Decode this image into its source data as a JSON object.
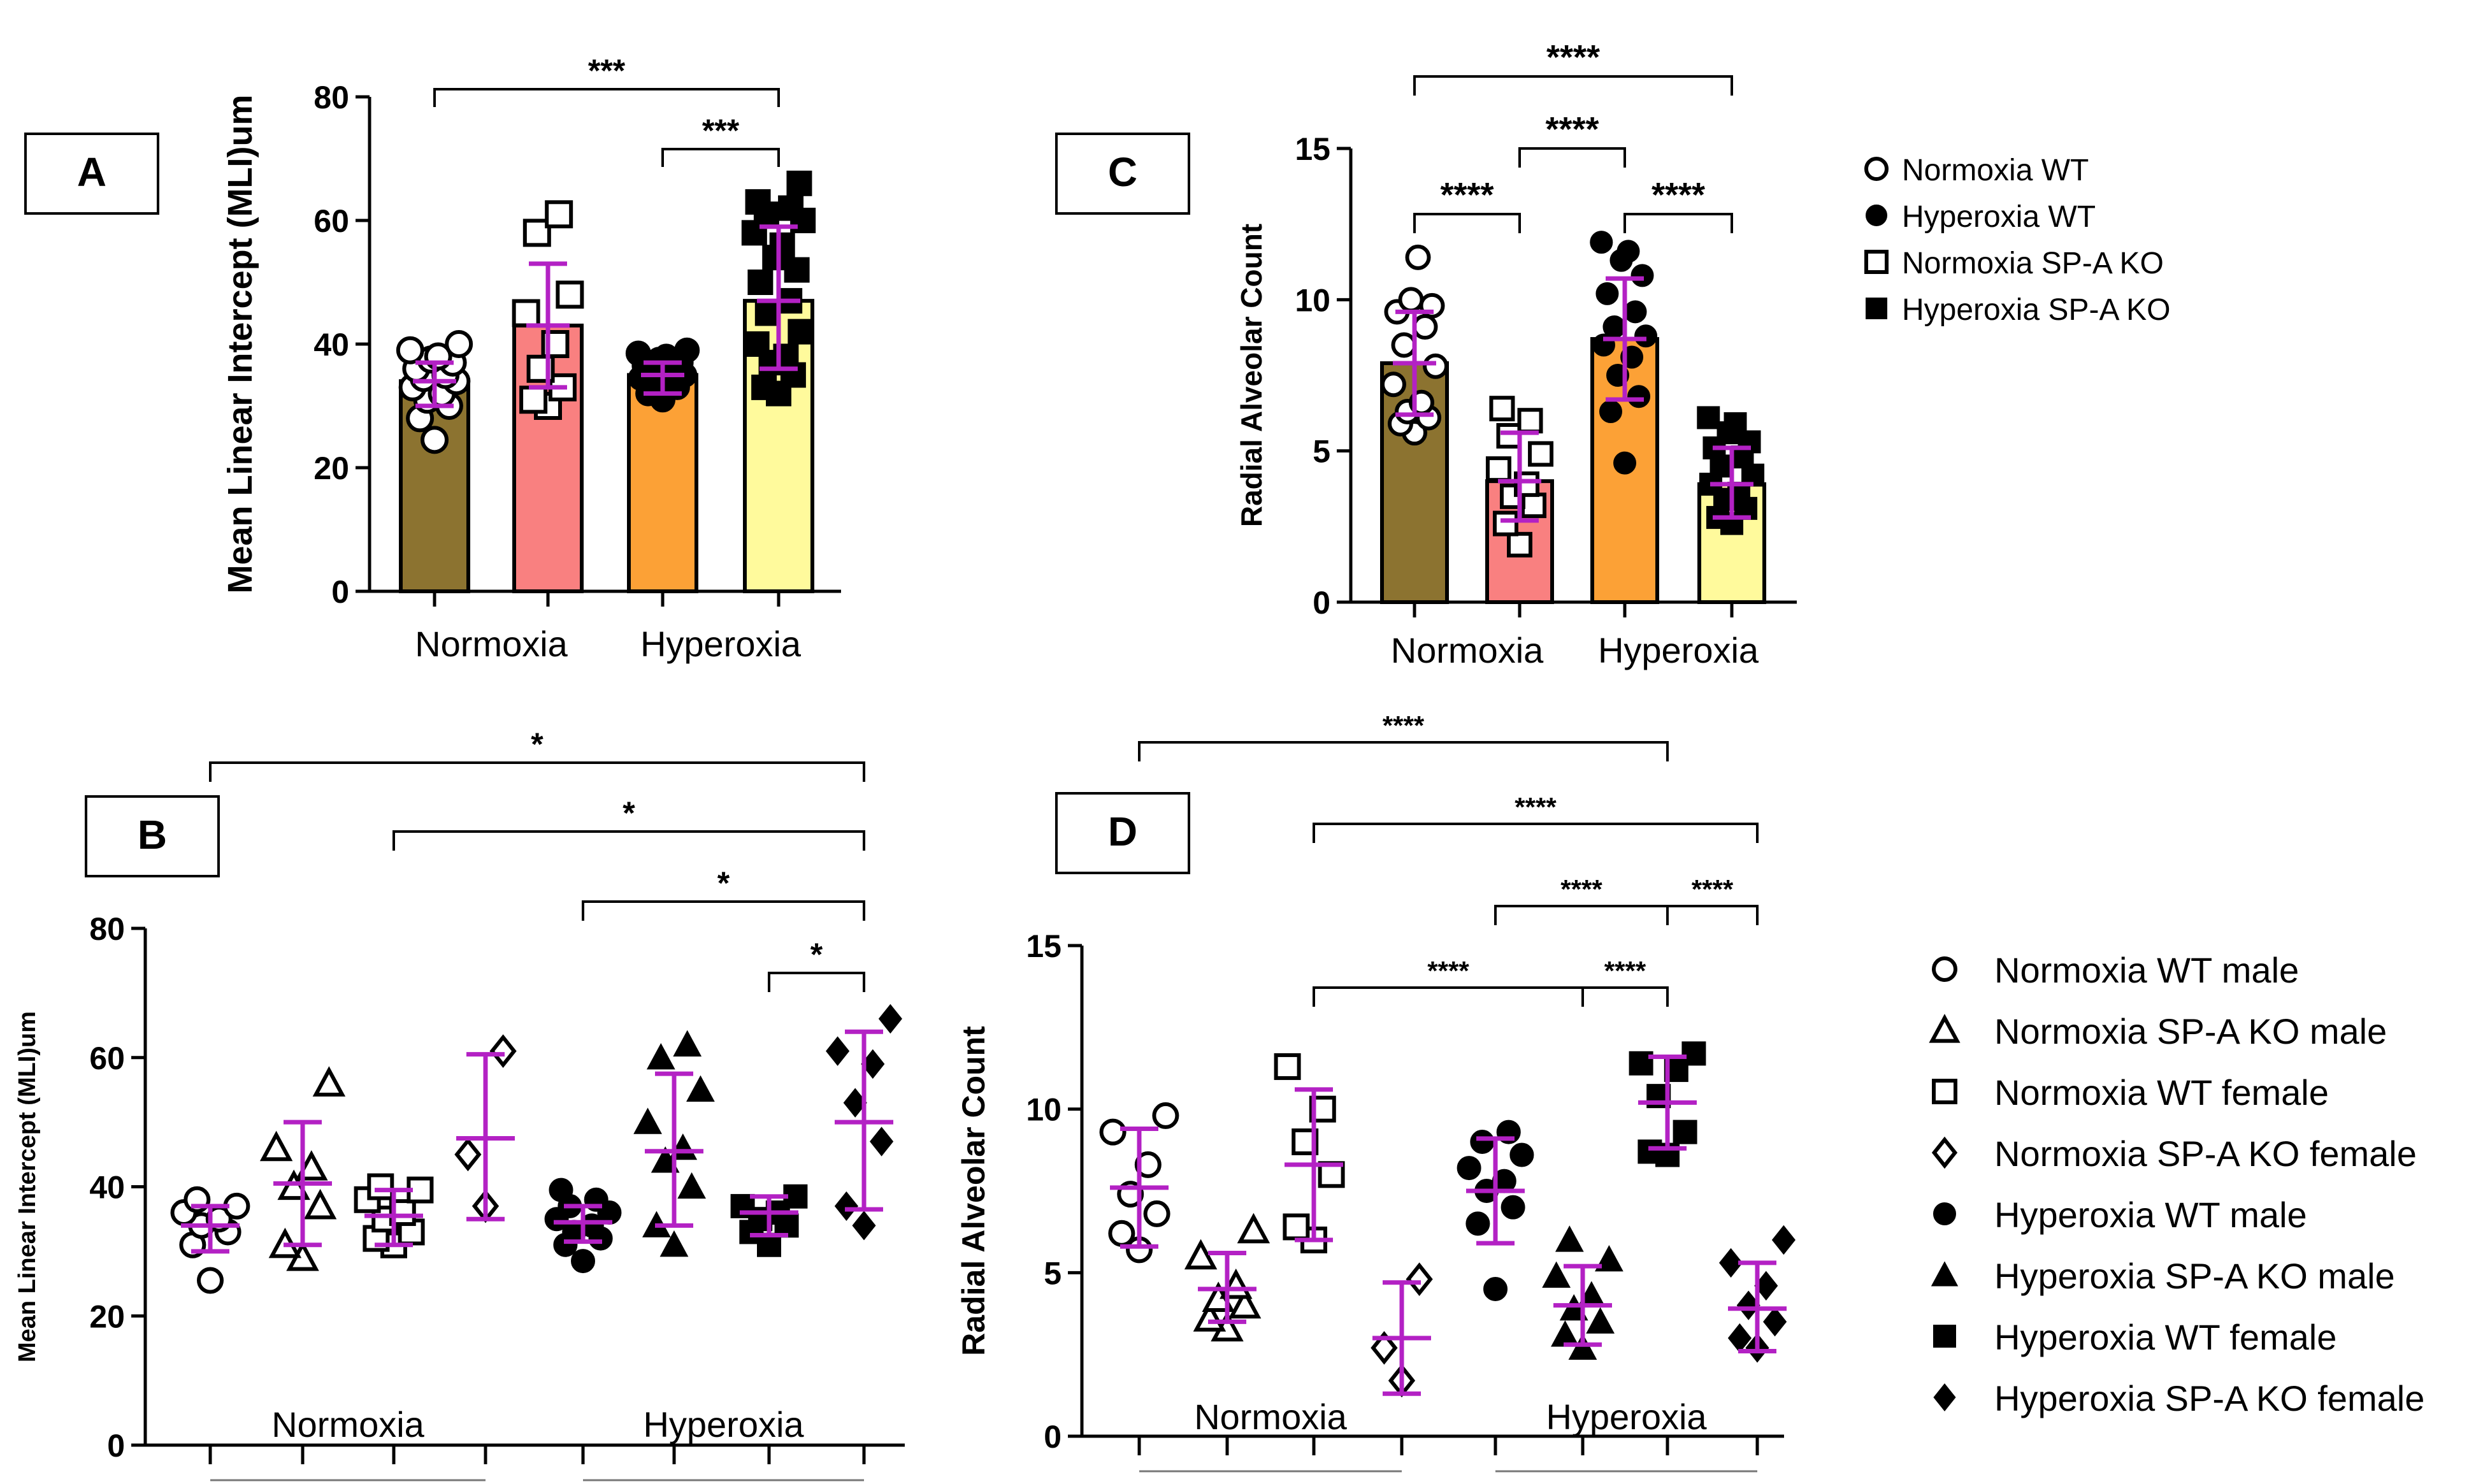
{
  "chart_data": [
    {
      "panel": "A",
      "type": "bar",
      "ylabel": "Mean Linear Intercept (MLI)um",
      "ylim": [
        0,
        80
      ],
      "yticks": [
        0,
        20,
        40,
        60,
        80
      ],
      "group_labels": [
        "Normoxia",
        "Hyperoxia"
      ],
      "bars": [
        {
          "name": "Normoxia WT",
          "value": 34,
          "sd_low": 30,
          "sd_high": 37,
          "color": "#8c7330",
          "marker": "circle-open",
          "points": [
            24.5,
            28,
            30,
            31,
            32,
            33,
            34,
            34.5,
            35,
            36,
            37,
            37.5,
            38,
            39,
            40
          ]
        },
        {
          "name": "Normoxia SP-A KO",
          "value": 43,
          "sd_low": 33,
          "sd_high": 53,
          "color": "#f98080",
          "marker": "square-open",
          "points": [
            30,
            31,
            33,
            36,
            40,
            45,
            48,
            58,
            61
          ]
        },
        {
          "name": "Hyperoxia WT",
          "value": 35,
          "sd_low": 32,
          "sd_high": 37,
          "color": "#fca136",
          "marker": "circle-filled",
          "points": [
            31,
            32,
            33,
            33.5,
            34,
            34.5,
            35,
            35.5,
            36,
            36.5,
            37,
            37.5,
            38,
            38.5,
            39
          ]
        },
        {
          "name": "Hyperoxia SP-A KO",
          "value": 47,
          "sd_low": 36,
          "sd_high": 59,
          "color": "#fffa9c",
          "marker": "square-filled",
          "points": [
            32,
            33,
            35,
            37,
            38,
            40,
            42,
            45,
            47,
            50,
            52,
            54,
            56,
            58,
            60,
            61,
            62,
            63,
            66
          ]
        }
      ],
      "significance": [
        {
          "from": 0,
          "to": 3,
          "label": "***"
        },
        {
          "from": 2,
          "to": 3,
          "label": "***"
        }
      ]
    },
    {
      "panel": "B",
      "type": "scatter",
      "ylabel": "Mean Linear Intercept (MLI)um",
      "ylim": [
        0,
        80
      ],
      "yticks": [
        0,
        20,
        40,
        60,
        80
      ],
      "group_labels": [
        "Normoxia",
        "Hyperoxia"
      ],
      "series": [
        {
          "name": "Normoxia WT male",
          "marker": "circle-open",
          "mean": 34,
          "sd_low": 30,
          "sd_high": 37,
          "points": [
            25.5,
            31,
            33,
            34,
            35,
            36,
            37,
            38
          ]
        },
        {
          "name": "Normoxia SP-A KO male",
          "marker": "triangle-open",
          "mean": 40.5,
          "sd_low": 31,
          "sd_high": 50,
          "points": [
            29,
            31,
            37,
            40,
            43,
            46,
            56
          ]
        },
        {
          "name": "Normoxia WT female",
          "marker": "square-open",
          "mean": 35.5,
          "sd_low": 31,
          "sd_high": 39.5,
          "points": [
            31,
            32,
            33,
            35,
            36,
            38,
            39.5,
            40
          ]
        },
        {
          "name": "Normoxia SP-A KO female",
          "marker": "diamond-open",
          "mean": 47.5,
          "sd_low": 35,
          "sd_high": 60.5,
          "points": [
            37,
            45,
            61
          ]
        },
        {
          "name": "Hyperoxia WT male",
          "marker": "circle-filled",
          "mean": 34.5,
          "sd_low": 31.5,
          "sd_high": 37,
          "points": [
            28.5,
            31,
            32,
            33,
            34,
            35,
            36,
            37,
            38,
            39.5
          ]
        },
        {
          "name": "Hyperoxia SP-A KO male",
          "marker": "triangle-filled",
          "mean": 45.5,
          "sd_low": 34,
          "sd_high": 57.5,
          "points": [
            31,
            34,
            40,
            44,
            46,
            50,
            55,
            60,
            62
          ]
        },
        {
          "name": "Hyperoxia WT female",
          "marker": "square-filled",
          "mean": 36,
          "sd_low": 32.5,
          "sd_high": 38.5,
          "points": [
            31,
            33,
            34,
            35,
            36,
            37,
            38.5
          ]
        },
        {
          "name": "Hyperoxia SP-A KO female",
          "marker": "diamond-filled",
          "mean": 50,
          "sd_low": 36.5,
          "sd_high": 64,
          "points": [
            34,
            37,
            47,
            53,
            59,
            61,
            66
          ]
        }
      ],
      "significance": [
        {
          "from": 0,
          "to": 7,
          "label": "*"
        },
        {
          "from": 2,
          "to": 7,
          "label": "*"
        },
        {
          "from": 4,
          "to": 7,
          "label": "*"
        },
        {
          "from": 6,
          "to": 7,
          "label": "*"
        }
      ]
    },
    {
      "panel": "C",
      "type": "bar",
      "ylabel": "Radial Alveolar Count",
      "ylim": [
        0,
        15
      ],
      "yticks": [
        0,
        5,
        10,
        15
      ],
      "group_labels": [
        "Normoxia",
        "Hyperoxia"
      ],
      "bars": [
        {
          "name": "Normoxia WT",
          "value": 7.9,
          "sd_low": 6.2,
          "sd_high": 9.6,
          "color": "#8c7330",
          "marker": "circle-open",
          "points": [
            5.6,
            5.9,
            6.1,
            6.3,
            6.6,
            7.2,
            7.8,
            8.5,
            9.1,
            9.6,
            9.8,
            10,
            11.4
          ]
        },
        {
          "name": "Normoxia SP-A KO",
          "value": 4.0,
          "sd_low": 2.7,
          "sd_high": 5.6,
          "color": "#f98080",
          "marker": "square-open",
          "points": [
            1.9,
            2.6,
            3.2,
            3.5,
            3.9,
            4.4,
            4.9,
            5.5,
            6.0,
            6.4
          ]
        },
        {
          "name": "Hyperoxia WT",
          "value": 8.7,
          "sd_low": 6.7,
          "sd_high": 10.7,
          "color": "#fca136",
          "marker": "circle-filled",
          "points": [
            4.6,
            6.3,
            6.8,
            7.5,
            8.1,
            8.5,
            8.8,
            9.1,
            9.6,
            10.2,
            10.8,
            11.3,
            11.6,
            11.9
          ]
        },
        {
          "name": "Hyperoxia SP-A KO",
          "value": 3.9,
          "sd_low": 2.8,
          "sd_high": 5.1,
          "color": "#fffa9c",
          "marker": "square-filled",
          "points": [
            2.6,
            2.8,
            3.1,
            3.4,
            3.6,
            3.9,
            4.2,
            4.5,
            4.8,
            5.1,
            5.3,
            5.6,
            5.9,
            6.1
          ]
        }
      ],
      "significance": [
        {
          "from": 0,
          "to": 3,
          "label": "****"
        },
        {
          "from": 1,
          "to": 2,
          "label": "****"
        },
        {
          "from": 0,
          "to": 1,
          "label": "****"
        },
        {
          "from": 2,
          "to": 3,
          "label": "****"
        }
      ]
    },
    {
      "panel": "D",
      "type": "scatter",
      "ylabel": "Radial Alveolar Count",
      "ylim": [
        0,
        15
      ],
      "yticks": [
        0,
        5,
        10,
        15
      ],
      "group_labels": [
        "Normoxia",
        "Hyperoxia"
      ],
      "series": [
        {
          "name": "Normoxia WT male",
          "marker": "circle-open",
          "mean": 7.6,
          "sd_low": 5.8,
          "sd_high": 9.4,
          "points": [
            5.7,
            6.2,
            6.8,
            7.4,
            8.3,
            9.3,
            9.8
          ]
        },
        {
          "name": "Normoxia SP-A KO male",
          "marker": "triangle-open",
          "mean": 4.5,
          "sd_low": 3.5,
          "sd_high": 5.6,
          "points": [
            3.3,
            3.6,
            4.0,
            4.2,
            4.6,
            5.5,
            6.3
          ]
        },
        {
          "name": "Normoxia WT female",
          "marker": "square-open",
          "mean": 8.3,
          "sd_low": 6.0,
          "sd_high": 10.6,
          "points": [
            6.0,
            6.4,
            8.0,
            9.0,
            10.0,
            11.3
          ]
        },
        {
          "name": "Normoxia SP-A KO female",
          "marker": "diamond-open",
          "mean": 3.0,
          "sd_low": 1.3,
          "sd_high": 4.7,
          "points": [
            1.7,
            2.7,
            4.8
          ]
        },
        {
          "name": "Hyperoxia WT male",
          "marker": "circle-filled",
          "mean": 7.5,
          "sd_low": 5.9,
          "sd_high": 9.1,
          "points": [
            4.5,
            6.5,
            7.0,
            7.5,
            7.8,
            8.2,
            8.6,
            9.0,
            9.3
          ]
        },
        {
          "name": "Hyperoxia SP-A KO male",
          "marker": "triangle-filled",
          "mean": 4.0,
          "sd_low": 2.8,
          "sd_high": 5.2,
          "points": [
            2.7,
            3.1,
            3.5,
            3.9,
            4.3,
            4.9,
            5.4,
            6.0
          ]
        },
        {
          "name": "Hyperoxia WT female",
          "marker": "square-filled",
          "mean": 10.2,
          "sd_low": 8.8,
          "sd_high": 11.6,
          "points": [
            8.6,
            8.7,
            9.3,
            10.4,
            11.2,
            11.4,
            11.7
          ]
        },
        {
          "name": "Hyperoxia SP-A KO female",
          "marker": "diamond-filled",
          "mean": 3.9,
          "sd_low": 2.6,
          "sd_high": 5.3,
          "points": [
            2.7,
            3.0,
            3.5,
            4.0,
            4.6,
            5.3,
            6.0
          ]
        }
      ],
      "significance": [
        {
          "from": 0,
          "to": 6,
          "label": "****"
        },
        {
          "from": 2,
          "to": 7,
          "label": "****"
        },
        {
          "from": 4,
          "to": 6,
          "label": "****"
        },
        {
          "from": 6,
          "to": 7,
          "label": "****"
        },
        {
          "from": 2,
          "to": 5,
          "label": "****"
        },
        {
          "from": 5,
          "to": 6,
          "label": "****"
        }
      ]
    }
  ],
  "legend_top": [
    {
      "label": "Normoxia WT",
      "marker": "circle-open"
    },
    {
      "label": "Hyperoxia WT",
      "marker": "circle-filled"
    },
    {
      "label": "Normoxia SP-A KO",
      "marker": "square-open"
    },
    {
      "label": "Hyperoxia SP-A KO",
      "marker": "square-filled"
    }
  ],
  "legend_bottom": [
    {
      "label": "Normoxia WT male",
      "marker": "circle-open"
    },
    {
      "label": "Normoxia SP-A KO male",
      "marker": "triangle-open"
    },
    {
      "label": "Normoxia WT female",
      "marker": "square-open"
    },
    {
      "label": "Normoxia SP-A KO female",
      "marker": "diamond-open"
    },
    {
      "label": "Hyperoxia WT male",
      "marker": "circle-filled"
    },
    {
      "label": "Hyperoxia SP-A KO male",
      "marker": "triangle-filled"
    },
    {
      "label": "Hyperoxia WT female",
      "marker": "square-filled"
    },
    {
      "label": "Hyperoxia SP-A KO female",
      "marker": "diamond-filled"
    }
  ],
  "colors": {
    "errorbar": "#b321c4",
    "axis": "#000000"
  }
}
